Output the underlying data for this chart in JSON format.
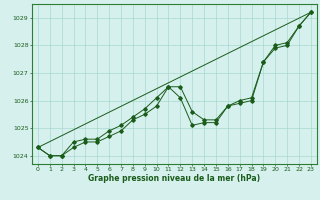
{
  "x": [
    0,
    1,
    2,
    3,
    4,
    5,
    6,
    7,
    8,
    9,
    10,
    11,
    12,
    13,
    14,
    15,
    16,
    17,
    18,
    19,
    20,
    21,
    22,
    23
  ],
  "line1": [
    1024.3,
    1024.0,
    1024.0,
    1024.3,
    1024.5,
    1024.5,
    1024.7,
    1024.9,
    1025.3,
    1025.5,
    1025.8,
    1026.5,
    1026.1,
    1025.1,
    1025.2,
    1025.2,
    1025.8,
    1025.9,
    1026.0,
    1027.4,
    1027.9,
    1028.0,
    1028.7,
    1029.2
  ],
  "line2": [
    1024.3,
    1024.0,
    1024.0,
    1024.5,
    1024.6,
    1024.6,
    1024.9,
    1025.1,
    1025.4,
    1025.7,
    1026.1,
    1026.5,
    1026.5,
    1025.6,
    1025.3,
    1025.3,
    1025.8,
    1026.0,
    1026.1,
    1027.4,
    1028.0,
    1028.1,
    1028.7,
    1029.2
  ],
  "line3_x": [
    0,
    23
  ],
  "line3_y": [
    1024.3,
    1029.2
  ],
  "ylim": [
    1023.7,
    1029.5
  ],
  "xlim": [
    -0.5,
    23.5
  ],
  "yticks": [
    1024,
    1025,
    1026,
    1027,
    1028,
    1029
  ],
  "xticks": [
    0,
    1,
    2,
    3,
    4,
    5,
    6,
    7,
    8,
    9,
    10,
    11,
    12,
    13,
    14,
    15,
    16,
    17,
    18,
    19,
    20,
    21,
    22,
    23
  ],
  "xlabel": "Graphe pression niveau de la mer (hPa)",
  "line_color": "#1a5c1a",
  "marker": "D",
  "marker_size": 1.8,
  "bg_color": "#d6f0ee",
  "grid_color": "#a8d8d0",
  "border_color": "#2e7d32",
  "xlabel_color": "#1a5c1a",
  "tick_fontsize": 4.5,
  "xlabel_fontsize": 5.5
}
